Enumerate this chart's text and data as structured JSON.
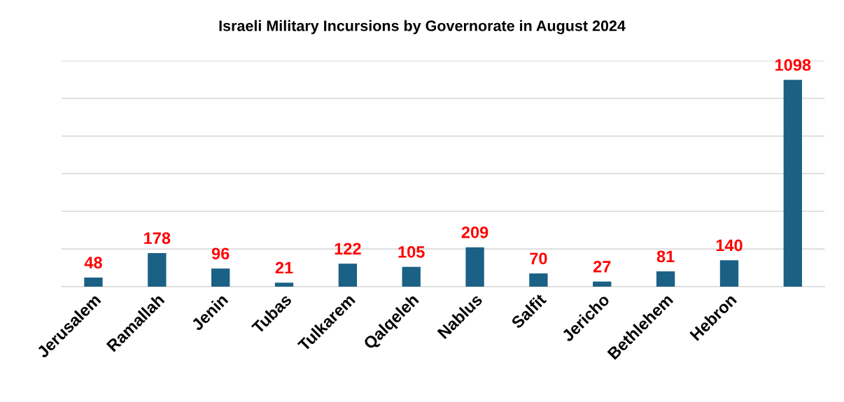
{
  "chart_data": {
    "type": "bar",
    "title": "Israeli Military Incursions by Governorate in August 2024",
    "categories": [
      "Jerusalem",
      "Ramallah",
      "Jenin",
      "Tubas",
      "Tulkarem",
      "Qalqeleh",
      "Nablus",
      "Salfit",
      "Jericho",
      "Bethlehem",
      "Hebron",
      null
    ],
    "values": [
      48,
      178,
      96,
      21,
      122,
      105,
      209,
      70,
      27,
      81,
      140,
      1098
    ],
    "color": "#1a6185",
    "ylim": [
      0,
      1200
    ],
    "yticks": [
      {
        "value": 0,
        "label": null
      },
      {
        "value": 200,
        "label": null
      },
      {
        "value": 400,
        "label": null
      },
      {
        "value": 600,
        "label": null
      },
      {
        "value": 800,
        "label": null
      },
      {
        "value": 1000,
        "label": null
      },
      {
        "value": 1200,
        "label": null
      }
    ],
    "tick_labels": "x",
    "grid": "y",
    "data_labels": true,
    "legend": false
  }
}
